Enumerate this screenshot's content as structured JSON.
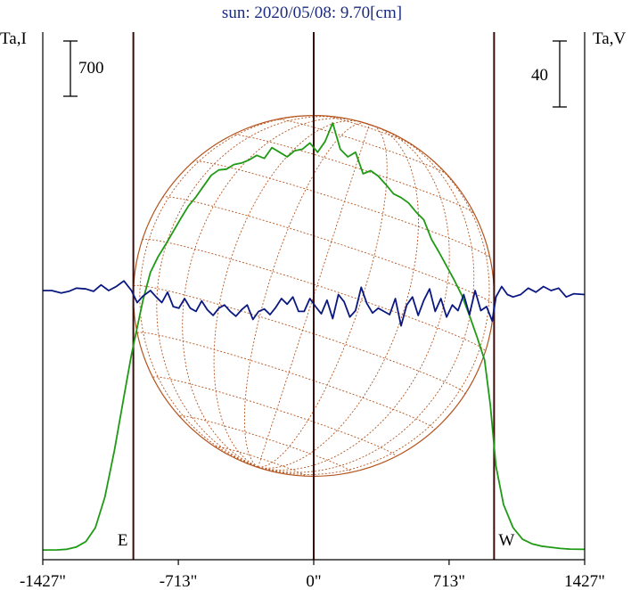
{
  "title": "sun: 2020/05/08: 9.70[cm]",
  "colors": {
    "background": "#ffffff",
    "frame": "#000000",
    "limb_lines": "#3a0b0b",
    "stokes_i": "#1f9a14",
    "stokes_v": "#0a1880",
    "sun_disk": "#b5551f",
    "title": "#1a2a80"
  },
  "chart_data": {
    "type": "line",
    "title": "sun: 2020/05/08: 9.70[cm]",
    "xlabel": "",
    "x_ticks": [
      "-1427\"",
      "-713\"",
      "0\"",
      "713\"",
      "1427\""
    ],
    "x_tick_values": [
      -1427,
      -713,
      0,
      713,
      1427
    ],
    "xlim": [
      -1427,
      1427
    ],
    "left_axis": {
      "label": "Ta,I",
      "scale_bar": "700"
    },
    "right_axis": {
      "label": "Ta,V",
      "scale_bar": "40"
    },
    "limb_markers": [
      {
        "label": "E",
        "x": -950
      },
      {
        "label": "",
        "x": 0
      },
      {
        "label": "W",
        "x": 950
      }
    ],
    "solar_disk": {
      "radius_arcsec": 950,
      "grid": "heliographic lat/lon, dotted"
    },
    "series": [
      {
        "axis": "left",
        "x": [
          -1427,
          -1350,
          -1300,
          -1250,
          -1200,
          -1150,
          -1100,
          -1050,
          -1000,
          -960,
          -930,
          -900,
          -860,
          -820,
          -780,
          -740,
          -700,
          -660,
          -620,
          -580,
          -540,
          -500,
          -460,
          -420,
          -380,
          -340,
          -300,
          -260,
          -220,
          -180,
          -140,
          -100,
          -60,
          -20,
          20,
          60,
          100,
          140,
          180,
          220,
          260,
          300,
          340,
          380,
          420,
          460,
          500,
          540,
          580,
          620,
          660,
          700,
          740,
          780,
          820,
          860,
          900,
          930,
          960,
          1000,
          1050,
          1100,
          1150,
          1200,
          1250,
          1300,
          1350,
          1427
        ],
        "values": [
          10,
          12,
          20,
          50,
          120,
          300,
          700,
          1300,
          2000,
          2550,
          2900,
          3250,
          3620,
          3820,
          3980,
          4150,
          4320,
          4480,
          4600,
          4740,
          4880,
          4950,
          4960,
          5020,
          5040,
          5080,
          5140,
          5100,
          5240,
          5180,
          5120,
          5200,
          5220,
          5300,
          5180,
          5320,
          5560,
          5220,
          5120,
          5180,
          4900,
          4940,
          4870,
          4760,
          4640,
          4590,
          4520,
          4400,
          4300,
          4050,
          3880,
          3700,
          3520,
          3320,
          3060,
          2780,
          2480,
          1900,
          1100,
          600,
          300,
          150,
          90,
          60,
          45,
          30,
          22,
          18
        ]
      },
      {
        "axis": "right",
        "x": [
          -1427,
          -1380,
          -1330,
          -1290,
          -1250,
          -1200,
          -1160,
          -1120,
          -1080,
          -1040,
          -1000,
          -960,
          -930,
          -900,
          -860,
          -830,
          -800,
          -770,
          -740,
          -710,
          -680,
          -650,
          -620,
          -590,
          -560,
          -530,
          -500,
          -470,
          -440,
          -410,
          -380,
          -350,
          -320,
          -290,
          -260,
          -230,
          -200,
          -170,
          -140,
          -110,
          -80,
          -50,
          -20,
          10,
          40,
          70,
          100,
          130,
          160,
          190,
          220,
          250,
          280,
          310,
          340,
          370,
          400,
          430,
          460,
          490,
          520,
          550,
          580,
          610,
          640,
          670,
          700,
          730,
          760,
          790,
          820,
          850,
          880,
          910,
          940,
          960,
          990,
          1020,
          1050,
          1090,
          1130,
          1170,
          1210,
          1250,
          1290,
          1330,
          1370,
          1427
        ],
        "values": [
          0,
          0,
          -3,
          -1,
          3,
          2,
          -1,
          7,
          0,
          5,
          12,
          0,
          -15,
          -7,
          0,
          -8,
          -15,
          -2,
          -20,
          -22,
          -10,
          -22,
          -26,
          -13,
          -24,
          -31,
          -22,
          -18,
          -26,
          -32,
          -24,
          -18,
          -36,
          -26,
          -23,
          -30,
          -21,
          -10,
          -17,
          -8,
          -26,
          -26,
          -10,
          -20,
          -29,
          -12,
          -35,
          -5,
          -14,
          -33,
          -25,
          4,
          -16,
          -28,
          -22,
          -26,
          -30,
          -10,
          -44,
          -18,
          -8,
          -31,
          -12,
          2,
          -26,
          -10,
          -33,
          -18,
          -25,
          -5,
          -30,
          0,
          -25,
          -20,
          -38,
          -8,
          5,
          -5,
          -8,
          -5,
          3,
          -2,
          5,
          0,
          3,
          -8,
          -4,
          -5
        ]
      }
    ]
  }
}
